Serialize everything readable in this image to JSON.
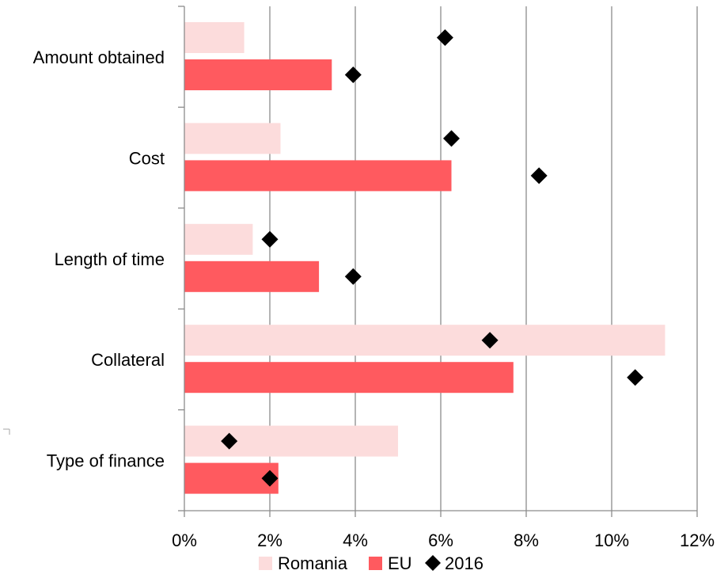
{
  "chart_data": {
    "type": "bar",
    "orientation": "horizontal",
    "categories": [
      "Amount obtained",
      "Cost",
      "Length of time",
      "Collateral",
      "Type of finance"
    ],
    "series": [
      {
        "name": "Romania",
        "kind": "bar",
        "color": "#fcdcdc",
        "values": [
          1.4,
          2.25,
          1.6,
          11.25,
          5.0
        ]
      },
      {
        "name": "EU",
        "kind": "bar",
        "color": "#ff5a5f",
        "values": [
          3.45,
          6.25,
          3.15,
          7.7,
          2.2
        ]
      },
      {
        "name": "2016",
        "kind": "marker",
        "marker": "diamond",
        "color": "#000000",
        "romania": [
          6.1,
          6.25,
          2.0,
          7.15,
          1.05
        ],
        "eu": [
          3.95,
          8.3,
          3.95,
          10.55,
          2.0
        ]
      }
    ],
    "x_ticks": [
      "0%",
      "2%",
      "4%",
      "6%",
      "8%",
      "10%",
      "12%"
    ],
    "xlim": [
      0,
      12
    ],
    "grid": "vertical",
    "legend": "bottom",
    "title": "",
    "xlabel": "",
    "ylabel": ""
  }
}
